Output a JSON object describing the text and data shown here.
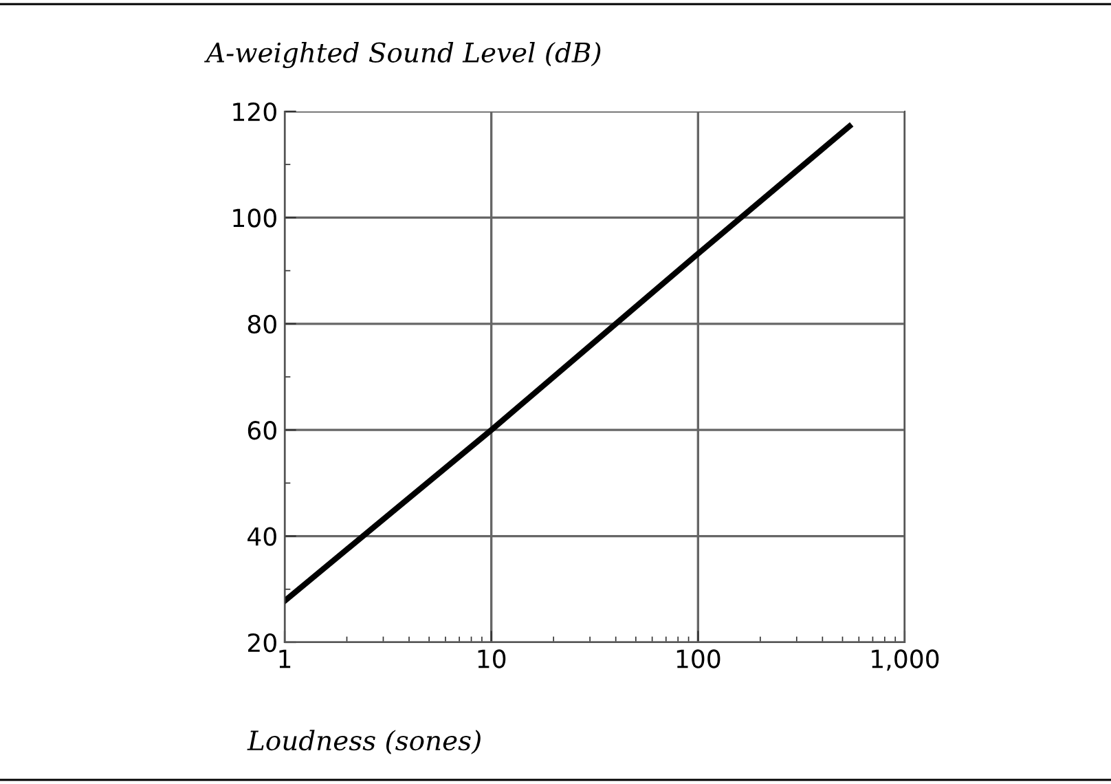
{
  "chart_data": {
    "type": "line",
    "ylabel": "A-weighted Sound Level (dB)",
    "xlabel": "Loudness (sones)",
    "log": "x",
    "x": [
      1,
      10,
      100,
      540
    ],
    "series": [
      {
        "color": "#000000",
        "values": [
          27.8,
          60,
          93.2,
          117.2
        ]
      }
    ],
    "xlim": [
      1,
      1000
    ],
    "xticks": [
      1,
      10,
      100,
      {
        "value": 1000,
        "label": "1,000"
      }
    ],
    "ylim": [
      20,
      120
    ],
    "yticks": [
      20,
      40,
      60,
      80,
      100,
      120
    ],
    "grid": true,
    "marker": "none",
    "line_style": "solid"
  }
}
